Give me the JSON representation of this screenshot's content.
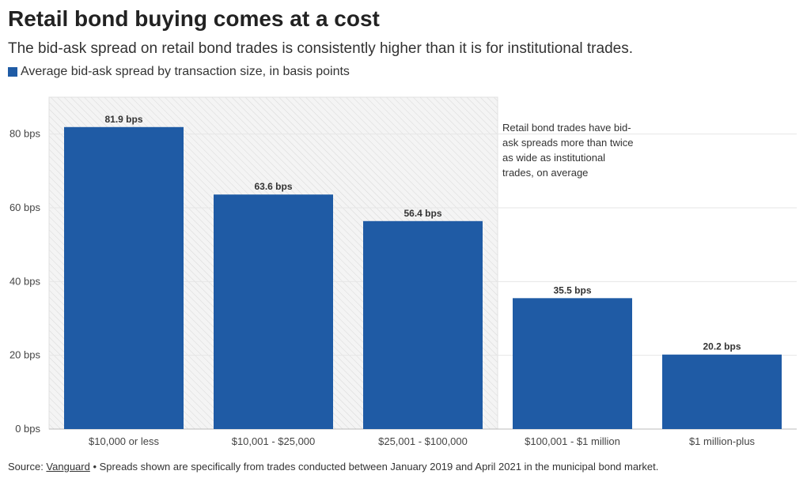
{
  "chart_data": {
    "type": "bar",
    "title": "Retail bond buying comes at a cost",
    "subtitle": "The bid-ask spread on retail bond trades is consistently higher than it is for institutional trades.",
    "legend": {
      "label": "Average bid-ask spread by transaction size, in basis points",
      "color": "#1f5ba5",
      "placement": "top-left"
    },
    "categories": [
      "$10,000 or less",
      "$10,001 - $25,000",
      "$25,001 - $100,000",
      "$100,001 - $1 million",
      "$1 million-plus"
    ],
    "values": [
      81.9,
      63.6,
      56.4,
      35.5,
      20.2
    ],
    "data_labels": [
      "81.9 bps",
      "63.6 bps",
      "56.4 bps",
      "35.5 bps",
      "20.2 bps"
    ],
    "ylim": [
      0,
      90
    ],
    "yticks": [
      0,
      20,
      40,
      60,
      80
    ],
    "ytick_labels": [
      "0 bps",
      "20 bps",
      "40 bps",
      "60 bps",
      "80 bps"
    ],
    "grid": true,
    "highlight": {
      "categories": [
        "$10,000 or less",
        "$10,001 - $25,000",
        "$25,001 - $100,000"
      ],
      "style": "hatched"
    },
    "annotation": [
      "Retail bond trades have bid-",
      "ask spreads more than twice",
      "as wide as institutional",
      "trades, on average"
    ],
    "bar_color": "#1f5ba5",
    "xlabel": "",
    "ylabel": ""
  },
  "source": {
    "prefix": "Source: ",
    "link_text": "Vanguard",
    "note": " • Spreads shown are specifically from trades conducted between January 2019 and April 2021 in the municipal bond market."
  }
}
